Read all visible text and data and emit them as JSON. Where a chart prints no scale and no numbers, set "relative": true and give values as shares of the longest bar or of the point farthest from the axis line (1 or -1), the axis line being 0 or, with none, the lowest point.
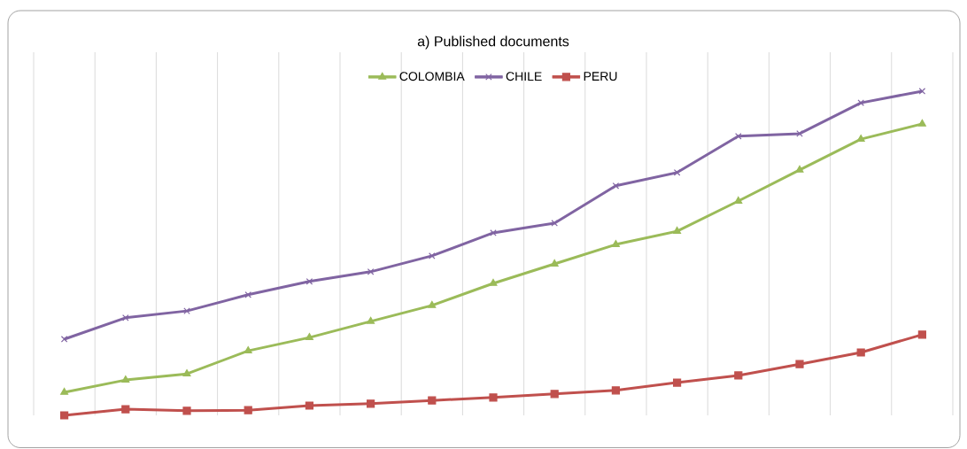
{
  "chart_data": {
    "type": "line",
    "title": "a) Published documents",
    "relative": true,
    "grid": "x",
    "legend": "top",
    "categories": [
      null,
      null,
      null,
      null,
      null,
      null,
      null,
      null,
      null,
      null,
      null,
      null,
      null,
      null,
      null
    ],
    "series": [
      {
        "name": "COLOMBIA",
        "color": "#9bbb59",
        "marker": "triangle",
        "values": [
          0.071,
          0.109,
          0.128,
          0.199,
          0.24,
          0.29,
          0.339,
          0.407,
          0.467,
          0.527,
          0.568,
          0.661,
          0.757,
          0.852,
          0.899
        ]
      },
      {
        "name": "CHILE",
        "color": "#8064a2",
        "marker": "cross",
        "values": [
          0.235,
          0.301,
          0.322,
          0.372,
          0.413,
          0.443,
          0.492,
          0.563,
          0.593,
          0.708,
          0.749,
          0.861,
          0.869,
          0.964,
          1
        ]
      },
      {
        "name": "PERU",
        "color": "#c0504d",
        "marker": "square",
        "values": [
          0,
          0.019,
          0.014,
          0.016,
          0.03,
          0.036,
          0.046,
          0.055,
          0.066,
          0.077,
          0.101,
          0.123,
          0.158,
          0.194,
          0.249
        ]
      }
    ]
  }
}
